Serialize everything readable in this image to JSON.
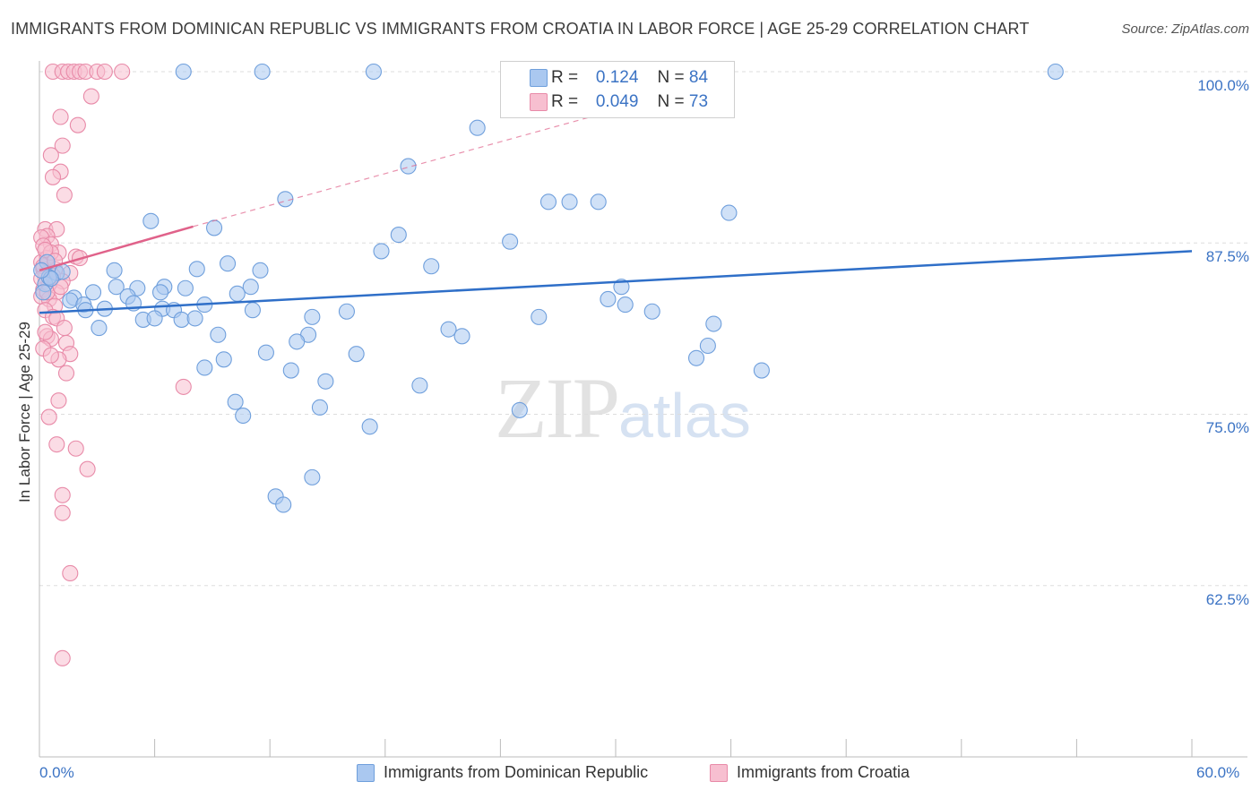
{
  "chart_data": {
    "type": "scatter",
    "title": "IMMIGRANTS FROM DOMINICAN REPUBLIC VS IMMIGRANTS FROM CROATIA IN LABOR FORCE | AGE 25-29 CORRELATION CHART",
    "source": "Source: ZipAtlas.com",
    "ylabel": "In Labor Force | Age 25-29",
    "xlim": [
      0,
      60
    ],
    "ylim": [
      50,
      102
    ],
    "x_tick_labels": [
      "0.0%",
      "60.0%"
    ],
    "y_ticks": [
      62.5,
      75.0,
      87.5,
      100.0
    ],
    "y_tick_labels": [
      "62.5%",
      "75.0%",
      "87.5%",
      "100.0%"
    ],
    "legend": {
      "rows": [
        {
          "r_label": "R =",
          "r_value": "0.124",
          "n_label": "N =",
          "n_value": "84"
        },
        {
          "r_label": "R =",
          "r_value": "0.049",
          "n_label": "N =",
          "n_value": "73"
        }
      ]
    },
    "watermark": {
      "zip": "ZIP",
      "atlas": "atlas"
    },
    "colors": {
      "blue_fill": "#aac8f0",
      "blue_stroke": "#6f9fdc",
      "blue_line": "#2f6fc8",
      "pink_fill": "#f7bfd0",
      "pink_stroke": "#e88aa8",
      "pink_line": "#e0628a",
      "tick_text": "#3b73c4",
      "grid": "#dddddd"
    },
    "series": [
      {
        "name": "Immigrants from Dominican Republic",
        "trend": {
          "x": [
            0,
            60
          ],
          "y": [
            82.4,
            86.9
          ]
        },
        "points": [
          [
            7.5,
            100
          ],
          [
            11.6,
            100
          ],
          [
            17.4,
            100
          ],
          [
            52.9,
            100
          ],
          [
            22.8,
            95.9
          ],
          [
            19.2,
            93.1
          ],
          [
            12.8,
            90.7
          ],
          [
            26.5,
            90.5
          ],
          [
            27.6,
            90.5
          ],
          [
            29.1,
            90.5
          ],
          [
            35.9,
            89.7
          ],
          [
            5.8,
            89.1
          ],
          [
            9.1,
            88.6
          ],
          [
            18.7,
            88.1
          ],
          [
            24.5,
            87.6
          ],
          [
            17.8,
            86.9
          ],
          [
            20.4,
            85.8
          ],
          [
            9.8,
            86.0
          ],
          [
            0.9,
            85.3
          ],
          [
            1.2,
            85.4
          ],
          [
            3.9,
            85.5
          ],
          [
            8.2,
            85.6
          ],
          [
            11.5,
            85.5
          ],
          [
            4.0,
            84.3
          ],
          [
            5.1,
            84.2
          ],
          [
            6.5,
            84.3
          ],
          [
            7.6,
            84.2
          ],
          [
            11.0,
            84.3
          ],
          [
            30.3,
            84.3
          ],
          [
            1.8,
            83.5
          ],
          [
            2.8,
            83.9
          ],
          [
            4.6,
            83.6
          ],
          [
            6.3,
            83.9
          ],
          [
            10.3,
            83.8
          ],
          [
            1.6,
            83.3
          ],
          [
            2.3,
            83.0
          ],
          [
            4.9,
            83.1
          ],
          [
            8.6,
            83.0
          ],
          [
            29.6,
            83.4
          ],
          [
            30.5,
            83.0
          ],
          [
            2.4,
            82.6
          ],
          [
            3.4,
            82.7
          ],
          [
            6.4,
            82.7
          ],
          [
            7.0,
            82.6
          ],
          [
            11.1,
            82.6
          ],
          [
            16.0,
            82.5
          ],
          [
            31.9,
            82.5
          ],
          [
            5.4,
            81.9
          ],
          [
            6.0,
            82.0
          ],
          [
            7.4,
            81.9
          ],
          [
            8.1,
            82.0
          ],
          [
            14.2,
            82.1
          ],
          [
            26.0,
            82.1
          ],
          [
            3.1,
            81.3
          ],
          [
            35.1,
            81.6
          ],
          [
            21.3,
            81.2
          ],
          [
            9.3,
            80.8
          ],
          [
            14.0,
            80.8
          ],
          [
            22.0,
            80.7
          ],
          [
            13.4,
            80.3
          ],
          [
            34.8,
            80.0
          ],
          [
            11.8,
            79.5
          ],
          [
            16.5,
            79.4
          ],
          [
            9.6,
            79.0
          ],
          [
            34.2,
            79.1
          ],
          [
            8.6,
            78.4
          ],
          [
            13.1,
            78.2
          ],
          [
            37.6,
            78.2
          ],
          [
            14.9,
            77.4
          ],
          [
            19.8,
            77.1
          ],
          [
            10.2,
            75.9
          ],
          [
            14.6,
            75.5
          ],
          [
            10.6,
            74.9
          ],
          [
            17.2,
            74.1
          ],
          [
            25.0,
            75.3
          ],
          [
            14.2,
            70.4
          ],
          [
            12.3,
            69.0
          ],
          [
            12.7,
            68.4
          ],
          [
            0.3,
            84.5
          ],
          [
            0.5,
            85.0
          ],
          [
            0.2,
            83.9
          ],
          [
            0.4,
            86.1
          ],
          [
            0.6,
            84.9
          ],
          [
            0.1,
            85.5
          ]
        ]
      },
      {
        "name": "Immigrants from Croatia",
        "trend": {
          "x": [
            0,
            8
          ],
          "y": [
            85.5,
            88.7
          ]
        },
        "trend_dashed": {
          "x": [
            8,
            30
          ],
          "y": [
            88.7,
            97.2
          ]
        },
        "points": [
          [
            0.7,
            100
          ],
          [
            1.2,
            100
          ],
          [
            1.5,
            100
          ],
          [
            1.8,
            100
          ],
          [
            2.1,
            100
          ],
          [
            2.4,
            100
          ],
          [
            3.0,
            100
          ],
          [
            3.4,
            100
          ],
          [
            4.3,
            100
          ],
          [
            2.7,
            98.2
          ],
          [
            1.1,
            96.7
          ],
          [
            2.0,
            96.1
          ],
          [
            1.2,
            94.6
          ],
          [
            0.6,
            93.9
          ],
          [
            1.1,
            92.7
          ],
          [
            0.7,
            92.3
          ],
          [
            1.3,
            91.0
          ],
          [
            0.3,
            88.5
          ],
          [
            0.9,
            88.5
          ],
          [
            0.4,
            88.0
          ],
          [
            0.1,
            87.9
          ],
          [
            0.6,
            87.4
          ],
          [
            0.2,
            87.3
          ],
          [
            1.0,
            86.8
          ],
          [
            1.9,
            86.5
          ],
          [
            2.1,
            86.4
          ],
          [
            0.1,
            86.1
          ],
          [
            0.4,
            85.9
          ],
          [
            0.2,
            85.6
          ],
          [
            0.5,
            85.4
          ],
          [
            0.8,
            85.6
          ],
          [
            1.6,
            85.3
          ],
          [
            0.3,
            85.0
          ],
          [
            0.6,
            84.9
          ],
          [
            1.2,
            84.7
          ],
          [
            0.2,
            84.1
          ],
          [
            0.9,
            83.9
          ],
          [
            0.1,
            83.6
          ],
          [
            0.5,
            83.4
          ],
          [
            0.8,
            82.9
          ],
          [
            0.3,
            82.6
          ],
          [
            0.7,
            82.1
          ],
          [
            0.9,
            82.0
          ],
          [
            1.3,
            81.3
          ],
          [
            0.4,
            80.7
          ],
          [
            0.6,
            80.5
          ],
          [
            1.4,
            80.2
          ],
          [
            0.2,
            79.8
          ],
          [
            1.6,
            79.4
          ],
          [
            1.0,
            79.0
          ],
          [
            1.4,
            78.0
          ],
          [
            7.5,
            77.0
          ],
          [
            1.0,
            76.0
          ],
          [
            0.5,
            74.8
          ],
          [
            0.9,
            72.8
          ],
          [
            1.9,
            72.5
          ],
          [
            2.5,
            71.0
          ],
          [
            1.2,
            69.1
          ],
          [
            1.2,
            67.8
          ],
          [
            1.6,
            63.4
          ],
          [
            1.2,
            57.2
          ],
          [
            0.2,
            85.8
          ],
          [
            0.4,
            86.4
          ],
          [
            0.6,
            86.8
          ],
          [
            0.3,
            87.0
          ],
          [
            0.8,
            86.2
          ],
          [
            0.5,
            84.5
          ],
          [
            0.1,
            84.9
          ],
          [
            0.7,
            85.1
          ],
          [
            0.4,
            83.9
          ],
          [
            1.1,
            84.3
          ],
          [
            0.3,
            81.0
          ],
          [
            0.6,
            79.3
          ]
        ]
      }
    ]
  }
}
